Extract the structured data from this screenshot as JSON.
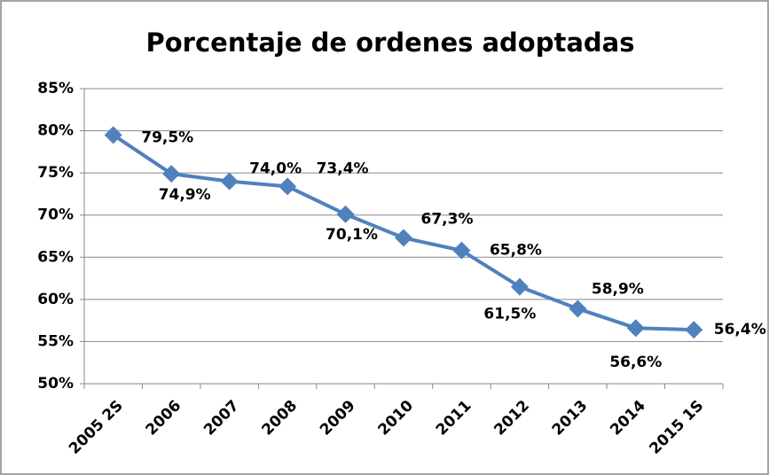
{
  "chart_data": {
    "type": "line",
    "title": "Porcentaje de ordenes adoptadas",
    "categories": [
      "2005 2S",
      "2006",
      "2007",
      "2008",
      "2009",
      "2010",
      "2011",
      "2012",
      "2013",
      "2014",
      "2015 1S"
    ],
    "values": [
      79.5,
      74.9,
      74.0,
      73.4,
      70.1,
      67.3,
      65.8,
      61.5,
      58.9,
      56.6,
      56.4
    ],
    "value_labels": [
      "79,5%",
      "74,9%",
      "74,0%",
      "73,4%",
      "70,1%",
      "67,3%",
      "65,8%",
      "61,5%",
      "58,9%",
      "56,6%",
      "56,4%"
    ],
    "color": "#4f81bd",
    "ylim": [
      50,
      85
    ],
    "yticks": [
      {
        "value": 50,
        "label": "50%"
      },
      {
        "value": 55,
        "label": "55%"
      },
      {
        "value": 60,
        "label": "60%"
      },
      {
        "value": 65,
        "label": "65%"
      },
      {
        "value": 70,
        "label": "70%"
      },
      {
        "value": 75,
        "label": "75%"
      },
      {
        "value": 80,
        "label": "80%"
      },
      {
        "value": 85,
        "label": "85%"
      }
    ],
    "grid": true
  }
}
